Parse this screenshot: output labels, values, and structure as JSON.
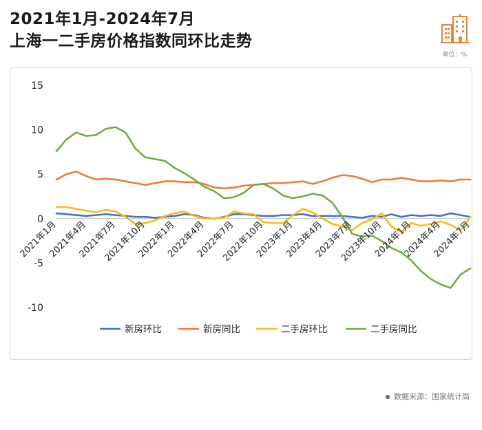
{
  "header": {
    "title_line1": "2021年1月-2024年7月",
    "title_line2": "上海一二手房价格指数同环比走势",
    "unit": "单位：%"
  },
  "footer": {
    "source": "数据来源：国家统计局"
  },
  "colors": {
    "new_mom": "#4472C4",
    "new_yoy": "#ED7D31",
    "second_mom": "#F5BE18",
    "second_yoy": "#70AD47",
    "logo": "#E8863A"
  },
  "chart_data": {
    "type": "line",
    "title": "",
    "xlabel": "",
    "ylabel": "",
    "ylim": [
      -10,
      15
    ],
    "yticks": [
      15,
      10,
      5,
      0,
      -5,
      -10
    ],
    "grid": false,
    "legend_position": "bottom",
    "x": [
      "2021年1月",
      "2021年2月",
      "2021年3月",
      "2021年4月",
      "2021年5月",
      "2021年6月",
      "2021年7月",
      "2021年8月",
      "2021年9月",
      "2021年10月",
      "2021年11月",
      "2021年12月",
      "2022年1月",
      "2022年2月",
      "2022年3月",
      "2022年4月",
      "2022年5月",
      "2022年6月",
      "2022年7月",
      "2022年8月",
      "2022年9月",
      "2022年10月",
      "2022年11月",
      "2022年12月",
      "2023年1月",
      "2023年2月",
      "2023年3月",
      "2023年4月",
      "2023年5月",
      "2023年6月",
      "2023年7月",
      "2023年8月",
      "2023年9月",
      "2023年10月",
      "2023年11月",
      "2023年12月",
      "2024年1月",
      "2024年2月",
      "2024年3月",
      "2024年4月",
      "2024年5月",
      "2024年6月",
      "2024年7月"
    ],
    "x_tick_labels": [
      "2021年1月",
      "2021年4月",
      "2021年7月",
      "2021年10月",
      "2022年1月",
      "2022年4月",
      "2022年7月",
      "2022年10月",
      "2023年1月",
      "2023年4月",
      "2023年7月",
      "2023年10月",
      "2024年1月",
      "2024年4月",
      "2024年7月"
    ],
    "x_tick_step": 3,
    "series": [
      {
        "name": "新房环比",
        "color_key": "new_mom",
        "values": [
          0.6,
          0.5,
          0.4,
          0.3,
          0.4,
          0.5,
          0.4,
          0.3,
          0.2,
          0.2,
          0.1,
          0.2,
          0.3,
          0.5,
          0.4,
          0.1,
          0.0,
          0.2,
          0.5,
          0.5,
          0.4,
          0.3,
          0.3,
          0.4,
          0.4,
          0.5,
          0.3,
          0.3,
          0.3,
          0.3,
          0.2,
          0.1,
          0.3,
          0.2,
          0.5,
          0.2,
          0.4,
          0.3,
          0.4,
          0.3,
          0.6,
          0.4,
          0.2
        ]
      },
      {
        "name": "新房同比",
        "color_key": "new_yoy",
        "values": [
          4.4,
          5.0,
          5.3,
          4.8,
          4.4,
          4.5,
          4.4,
          4.2,
          4.0,
          3.8,
          4.0,
          4.2,
          4.2,
          4.1,
          4.1,
          3.9,
          3.5,
          3.4,
          3.5,
          3.7,
          3.8,
          3.9,
          4.0,
          4.0,
          4.1,
          4.2,
          3.9,
          4.2,
          4.6,
          4.9,
          4.8,
          4.5,
          4.1,
          4.4,
          4.4,
          4.6,
          4.4,
          4.2,
          4.2,
          4.3,
          4.2,
          4.4,
          4.4
        ]
      },
      {
        "name": "二手房环比",
        "color_key": "second_mom",
        "values": [
          1.3,
          1.3,
          1.1,
          0.9,
          0.7,
          1.0,
          0.8,
          0.2,
          -0.6,
          -0.5,
          -0.2,
          0.3,
          0.6,
          0.8,
          0.3,
          0.0,
          0.0,
          0.1,
          0.8,
          0.6,
          0.5,
          -0.4,
          -0.5,
          -0.5,
          0.4,
          1.1,
          0.7,
          0.0,
          -0.6,
          -0.9,
          -1.3,
          -0.5,
          -0.1,
          0.6,
          -0.9,
          -1.5,
          -0.5,
          -0.8,
          -0.6,
          -0.3,
          -0.7,
          -1.3,
          0.2
        ]
      },
      {
        "name": "二手房同比",
        "color_key": "second_yoy",
        "values": [
          7.6,
          8.9,
          9.7,
          9.3,
          9.4,
          10.1,
          10.3,
          9.7,
          7.9,
          6.9,
          6.7,
          6.5,
          5.7,
          5.1,
          4.4,
          3.6,
          3.1,
          2.3,
          2.4,
          2.9,
          3.8,
          3.9,
          3.4,
          2.6,
          2.3,
          2.5,
          2.8,
          2.6,
          1.8,
          0.2,
          -1.7,
          -2.0,
          -1.9,
          -2.5,
          -3.3,
          -3.8,
          -4.7,
          -5.9,
          -6.8,
          -7.4,
          -7.8,
          -6.3,
          -5.6
        ]
      }
    ]
  }
}
